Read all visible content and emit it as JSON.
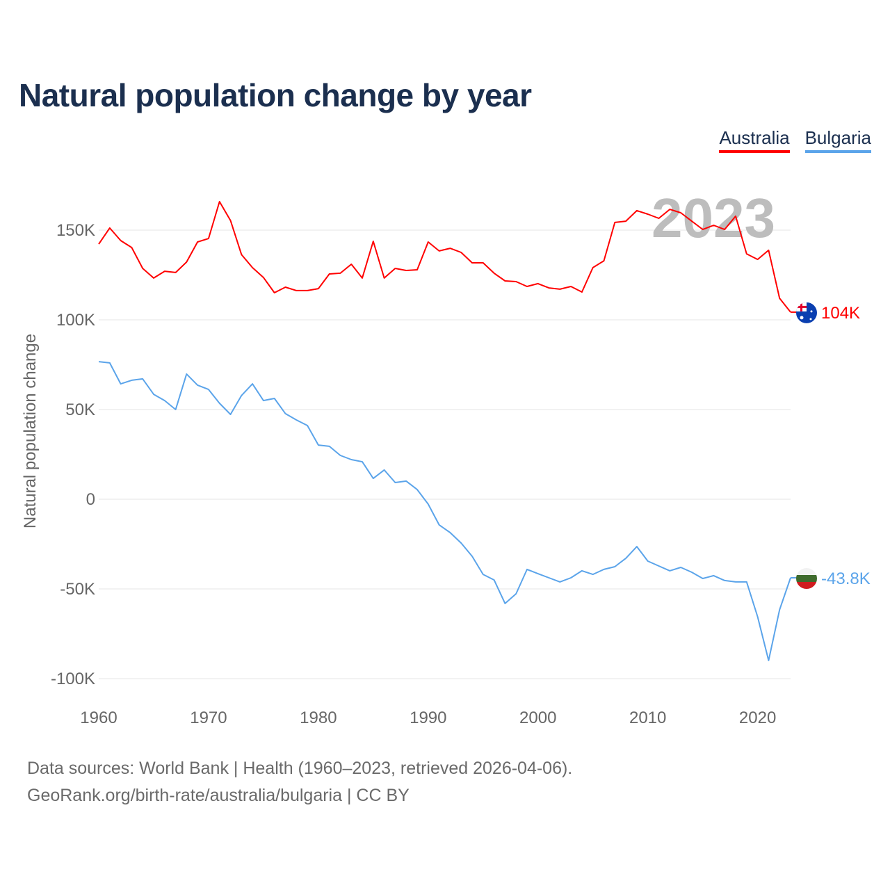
{
  "title": "Natural population change by year",
  "legend": [
    {
      "label": "Australia",
      "color": "#ff0000"
    },
    {
      "label": "Bulgaria",
      "color": "#5ba4ea"
    }
  ],
  "footer": {
    "line1": "Data sources: World Bank | Health (1960–2023, retrieved 2026-04-06).",
    "line2": "GeoRank.org/birth-rate/australia/bulgaria | CC BY"
  },
  "chart_data": {
    "type": "line",
    "title": "Natural population change by year",
    "xlabel": "",
    "ylabel": "Natural population change",
    "year_watermark": "2023",
    "xlim": [
      1960,
      2023
    ],
    "ylim": [
      -100000,
      170000
    ],
    "x_ticks": [
      1960,
      1970,
      1980,
      1990,
      2000,
      2010,
      2020
    ],
    "y_ticks": [
      {
        "v": -100000,
        "label": "-100K"
      },
      {
        "v": -50000,
        "label": "-50K"
      },
      {
        "v": 0,
        "label": "0"
      },
      {
        "v": 50000,
        "label": "50K"
      },
      {
        "v": 100000,
        "label": "100K"
      },
      {
        "v": 150000,
        "label": "150K"
      }
    ],
    "grid": true,
    "legend_position": "top-right",
    "x": [
      1960,
      1961,
      1962,
      1963,
      1964,
      1965,
      1966,
      1967,
      1968,
      1969,
      1970,
      1971,
      1972,
      1973,
      1974,
      1975,
      1976,
      1977,
      1978,
      1979,
      1980,
      1981,
      1982,
      1983,
      1984,
      1985,
      1986,
      1987,
      1988,
      1989,
      1990,
      1991,
      1992,
      1993,
      1994,
      1995,
      1996,
      1997,
      1998,
      1999,
      2000,
      2001,
      2002,
      2003,
      2004,
      2005,
      2006,
      2007,
      2008,
      2009,
      2010,
      2011,
      2012,
      2013,
      2014,
      2015,
      2016,
      2017,
      2018,
      2019,
      2020,
      2021,
      2022,
      2023
    ],
    "series": [
      {
        "name": "Australia",
        "color": "#ff0000",
        "end_label": "104K",
        "flag": "australia-flag",
        "values": [
          142200,
          151200,
          144200,
          140300,
          128700,
          123300,
          127100,
          126400,
          132200,
          143400,
          145300,
          165900,
          155400,
          136400,
          129100,
          123600,
          115100,
          118200,
          116300,
          116300,
          117400,
          125600,
          126000,
          131000,
          123300,
          143800,
          123300,
          128700,
          127500,
          127900,
          143400,
          138400,
          139900,
          137600,
          131800,
          131800,
          126000,
          121700,
          121300,
          118600,
          120200,
          117800,
          117100,
          118600,
          115500,
          129100,
          132900,
          154300,
          155000,
          160900,
          158900,
          156600,
          161600,
          159700,
          155000,
          150400,
          152700,
          150400,
          157800,
          136800,
          133700,
          138800,
          112000,
          104300
        ]
      },
      {
        "name": "Bulgaria",
        "color": "#5ba4ea",
        "end_label": "-43.8K",
        "flag": "bulgaria-flag",
        "values": [
          76700,
          76000,
          64300,
          66300,
          67100,
          58500,
          55000,
          50000,
          69800,
          63600,
          61200,
          53500,
          47300,
          57800,
          64300,
          55000,
          56200,
          47700,
          44200,
          41100,
          30200,
          29500,
          24400,
          22100,
          20900,
          11600,
          16300,
          9300,
          10100,
          5400,
          -2700,
          -14300,
          -18600,
          -24400,
          -31800,
          -41900,
          -45000,
          -58100,
          -52700,
          -39100,
          -41500,
          -43800,
          -46100,
          -43800,
          -39900,
          -41900,
          -39100,
          -37600,
          -32900,
          -26400,
          -34500,
          -37200,
          -39900,
          -38000,
          -40700,
          -44200,
          -42600,
          -45300,
          -46100,
          -46100,
          -65500,
          -89900,
          -61600,
          -43800
        ]
      }
    ]
  }
}
